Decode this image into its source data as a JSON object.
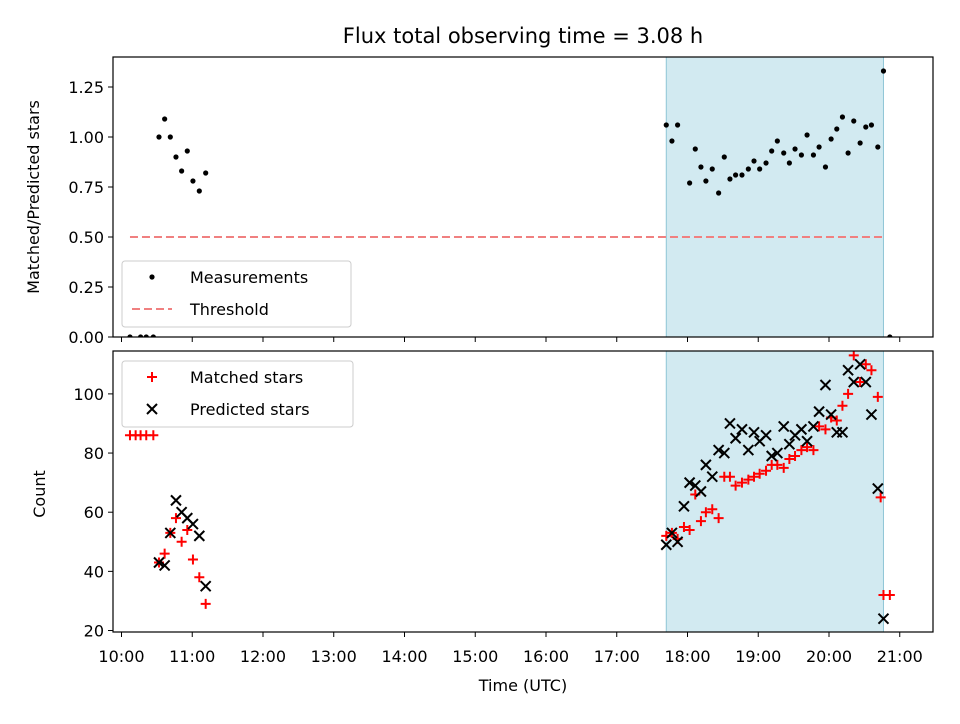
{
  "chart_data": {
    "type": "scatter",
    "title": "Flux total observing time = 3.08 h",
    "xlabel": "Time (UTC)",
    "x_tick_labels": [
      "10:00",
      "11:00",
      "12:00",
      "13:00",
      "14:00",
      "15:00",
      "16:00",
      "17:00",
      "18:00",
      "19:00",
      "20:00",
      "21:00"
    ],
    "x_ticks_hours": [
      10,
      11,
      12,
      13,
      14,
      15,
      16,
      17,
      18,
      19,
      20,
      21
    ],
    "xlim_hours": [
      9.88,
      21.47
    ],
    "shaded_span_hours": [
      17.7,
      20.77
    ],
    "shade_color": "#add8e6",
    "panels": [
      {
        "ylabel": "Matched/Predicted stars",
        "ylim": [
          0,
          1.4
        ],
        "y_ticks": [
          0,
          0.25,
          0.5,
          0.75,
          1.0,
          1.25
        ],
        "y_tick_labels": [
          "0.00",
          "0.25",
          "0.50",
          "0.75",
          "1.00",
          "1.25"
        ],
        "legend_position": "lower-left",
        "threshold": {
          "name": "Threshold",
          "value": 0.5,
          "x_range_hours": [
            10.12,
            20.8
          ],
          "color": "#f08080",
          "style": "dashed"
        },
        "series": [
          {
            "name": "Measurements",
            "marker": "dot",
            "color": "#000000",
            "points": [
              [
                10.12,
                0.0
              ],
              [
                10.27,
                0.0
              ],
              [
                10.35,
                0.0
              ],
              [
                10.45,
                0.0
              ],
              [
                10.53,
                1.0
              ],
              [
                10.61,
                1.09
              ],
              [
                10.69,
                1.0
              ],
              [
                10.77,
                0.9
              ],
              [
                10.85,
                0.83
              ],
              [
                10.93,
                0.93
              ],
              [
                11.01,
                0.78
              ],
              [
                11.1,
                0.73
              ],
              [
                11.19,
                0.82
              ],
              [
                17.7,
                1.06
              ],
              [
                17.78,
                0.98
              ],
              [
                17.86,
                1.06
              ],
              [
                18.03,
                0.77
              ],
              [
                18.11,
                0.94
              ],
              [
                18.19,
                0.85
              ],
              [
                18.26,
                0.78
              ],
              [
                18.35,
                0.84
              ],
              [
                18.44,
                0.72
              ],
              [
                18.52,
                0.9
              ],
              [
                18.6,
                0.79
              ],
              [
                18.68,
                0.81
              ],
              [
                18.77,
                0.81
              ],
              [
                18.86,
                0.84
              ],
              [
                18.94,
                0.88
              ],
              [
                19.02,
                0.84
              ],
              [
                19.11,
                0.87
              ],
              [
                19.19,
                0.93
              ],
              [
                19.27,
                0.98
              ],
              [
                19.36,
                0.92
              ],
              [
                19.44,
                0.87
              ],
              [
                19.52,
                0.94
              ],
              [
                19.61,
                0.91
              ],
              [
                19.69,
                1.01
              ],
              [
                19.78,
                0.91
              ],
              [
                19.86,
                0.95
              ],
              [
                19.95,
                0.85
              ],
              [
                20.03,
                0.99
              ],
              [
                20.11,
                1.04
              ],
              [
                20.19,
                1.1
              ],
              [
                20.27,
                0.92
              ],
              [
                20.35,
                1.08
              ],
              [
                20.44,
                0.97
              ],
              [
                20.52,
                1.05
              ],
              [
                20.6,
                1.06
              ],
              [
                20.69,
                0.95
              ],
              [
                20.77,
                1.33
              ],
              [
                20.86,
                0.0
              ]
            ]
          }
        ]
      },
      {
        "ylabel": "Count",
        "ylim": [
          19.5,
          114.5
        ],
        "y_ticks": [
          20,
          40,
          60,
          80,
          100
        ],
        "y_tick_labels": [
          "20",
          "40",
          "60",
          "80",
          "100"
        ],
        "legend_position": "upper-left",
        "series": [
          {
            "name": "Matched stars",
            "marker": "plus",
            "color": "#ff0000",
            "points": [
              [
                10.12,
                86
              ],
              [
                10.2,
                86
              ],
              [
                10.27,
                86
              ],
              [
                10.35,
                86
              ],
              [
                10.45,
                86
              ],
              [
                10.53,
                43
              ],
              [
                10.61,
                46
              ],
              [
                10.69,
                53
              ],
              [
                10.77,
                58
              ],
              [
                10.85,
                50
              ],
              [
                10.93,
                54
              ],
              [
                11.01,
                44
              ],
              [
                11.1,
                38
              ],
              [
                11.19,
                29
              ],
              [
                17.7,
                52
              ],
              [
                17.78,
                53
              ],
              [
                17.86,
                51
              ],
              [
                17.95,
                55
              ],
              [
                18.03,
                54
              ],
              [
                18.11,
                66
              ],
              [
                18.19,
                57
              ],
              [
                18.26,
                60
              ],
              [
                18.35,
                61
              ],
              [
                18.44,
                58
              ],
              [
                18.52,
                72
              ],
              [
                18.6,
                72
              ],
              [
                18.68,
                69
              ],
              [
                18.77,
                70
              ],
              [
                18.86,
                71
              ],
              [
                18.94,
                72
              ],
              [
                19.02,
                73
              ],
              [
                19.11,
                74
              ],
              [
                19.19,
                76
              ],
              [
                19.27,
                76
              ],
              [
                19.36,
                75
              ],
              [
                19.44,
                78
              ],
              [
                19.52,
                79
              ],
              [
                19.61,
                81
              ],
              [
                19.69,
                82
              ],
              [
                19.78,
                81
              ],
              [
                19.86,
                89
              ],
              [
                19.95,
                88
              ],
              [
                20.03,
                92
              ],
              [
                20.11,
                91
              ],
              [
                20.19,
                96
              ],
              [
                20.27,
                100
              ],
              [
                20.35,
                113
              ],
              [
                20.44,
                104
              ],
              [
                20.52,
                110
              ],
              [
                20.6,
                108
              ],
              [
                20.69,
                99
              ],
              [
                20.73,
                65
              ],
              [
                20.77,
                32
              ],
              [
                20.86,
                32
              ]
            ]
          },
          {
            "name": "Predicted stars",
            "marker": "x",
            "color": "#000000",
            "points": [
              [
                10.53,
                43
              ],
              [
                10.61,
                42
              ],
              [
                10.69,
                53
              ],
              [
                10.77,
                64
              ],
              [
                10.85,
                60
              ],
              [
                10.93,
                58
              ],
              [
                11.01,
                56
              ],
              [
                11.1,
                52
              ],
              [
                11.19,
                35
              ],
              [
                17.7,
                49
              ],
              [
                17.78,
                53
              ],
              [
                17.86,
                50
              ],
              [
                17.95,
                62
              ],
              [
                18.03,
                70
              ],
              [
                18.11,
                69
              ],
              [
                18.19,
                67
              ],
              [
                18.26,
                76
              ],
              [
                18.35,
                72
              ],
              [
                18.44,
                81
              ],
              [
                18.52,
                80
              ],
              [
                18.6,
                90
              ],
              [
                18.68,
                85
              ],
              [
                18.77,
                88
              ],
              [
                18.86,
                81
              ],
              [
                18.94,
                87
              ],
              [
                19.02,
                84
              ],
              [
                19.11,
                86
              ],
              [
                19.19,
                79
              ],
              [
                19.27,
                80
              ],
              [
                19.36,
                89
              ],
              [
                19.44,
                83
              ],
              [
                19.52,
                86
              ],
              [
                19.61,
                88
              ],
              [
                19.69,
                84
              ],
              [
                19.78,
                89
              ],
              [
                19.86,
                94
              ],
              [
                19.95,
                103
              ],
              [
                20.03,
                93
              ],
              [
                20.11,
                87
              ],
              [
                20.19,
                87
              ],
              [
                20.27,
                108
              ],
              [
                20.35,
                104
              ],
              [
                20.44,
                110
              ],
              [
                20.52,
                104
              ],
              [
                20.6,
                93
              ],
              [
                20.69,
                68
              ],
              [
                20.77,
                24
              ]
            ]
          }
        ]
      }
    ]
  }
}
